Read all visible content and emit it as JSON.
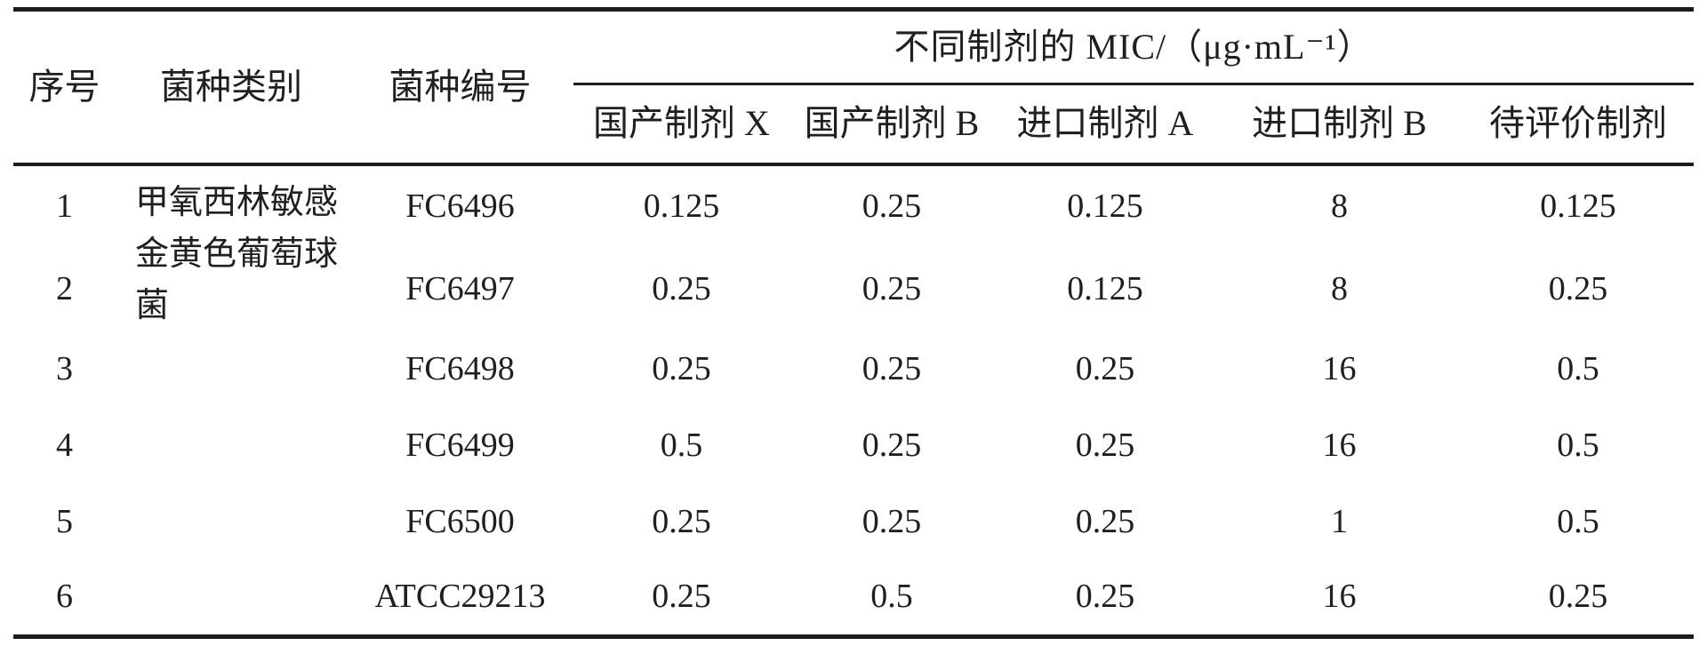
{
  "colors": {
    "ink": "#1f1f1f",
    "rule": "#1c1c1c",
    "background": "#ffffff"
  },
  "table": {
    "stub_headers": [
      "序号",
      "菌种类别",
      "菌种编号"
    ],
    "spanner": "不同制剂的 MIC/（μg·mL⁻¹）",
    "sub_headers": [
      "国产制剂 X",
      "国产制剂 B",
      "进口制剂 A",
      "进口制剂 B",
      "待评价制剂"
    ],
    "rows": [
      {
        "no": "1",
        "species": "甲氧西林敏感金黄色葡萄球菌",
        "strain": "FC6496",
        "values": [
          "0.125",
          "0.25",
          "0.125",
          "8",
          "0.125"
        ]
      },
      {
        "no": "2",
        "species": "",
        "strain": "FC6497",
        "values": [
          "0.25",
          "0.25",
          "0.125",
          "8",
          "0.25"
        ]
      },
      {
        "no": "3",
        "species": "",
        "strain": "FC6498",
        "values": [
          "0.25",
          "0.25",
          "0.25",
          "16",
          "0.5"
        ]
      },
      {
        "no": "4",
        "species": "",
        "strain": "FC6499",
        "values": [
          "0.5",
          "0.25",
          "0.25",
          "16",
          "0.5"
        ]
      },
      {
        "no": "5",
        "species": "",
        "strain": "FC6500",
        "values": [
          "0.25",
          "0.25",
          "0.25",
          "1",
          "0.5"
        ]
      },
      {
        "no": "6",
        "species": "",
        "strain": "ATCC29213",
        "values": [
          "0.25",
          "0.5",
          "0.25",
          "16",
          "0.25"
        ]
      }
    ]
  }
}
